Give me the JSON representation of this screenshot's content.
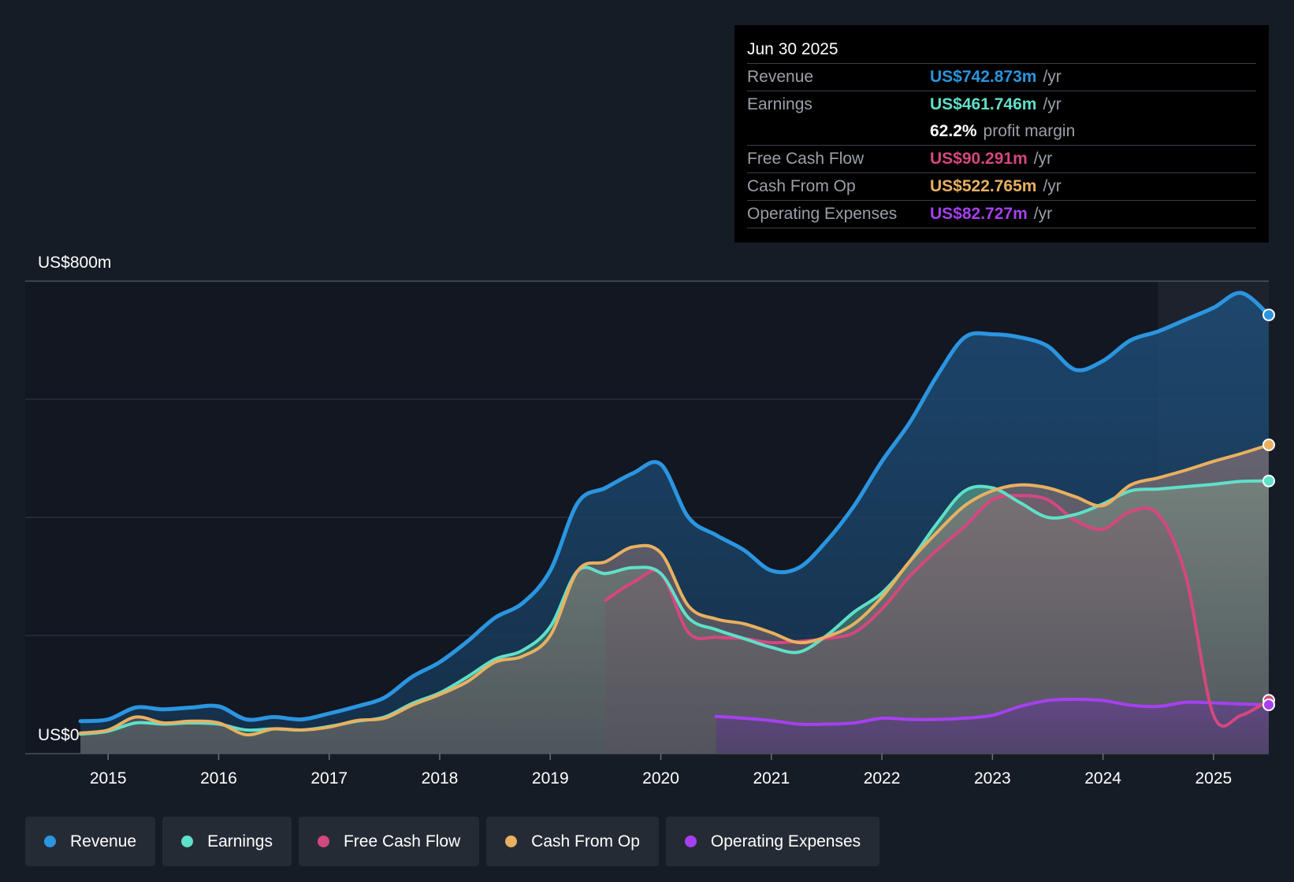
{
  "tooltip": {
    "date": "Jun 30 2025",
    "unit": "/yr",
    "revenue": {
      "label": "Revenue",
      "value": "US$742.873m"
    },
    "earnings": {
      "label": "Earnings",
      "value": "US$461.746m"
    },
    "margin": {
      "value": "62.2%",
      "label": "profit margin"
    },
    "fcf": {
      "label": "Free Cash Flow",
      "value": "US$90.291m"
    },
    "cfo": {
      "label": "Cash From Op",
      "value": "US$522.765m"
    },
    "opex": {
      "label": "Operating Expenses",
      "value": "US$82.727m"
    }
  },
  "legend": {
    "revenue": "Revenue",
    "earnings": "Earnings",
    "fcf": "Free Cash Flow",
    "cfo": "Cash From Op",
    "opex": "Operating Expenses"
  },
  "colors": {
    "revenue": "#2b95e0",
    "earnings": "#5fe0c8",
    "fcf": "#d5477f",
    "cfo": "#e9b060",
    "opex": "#a640f0"
  },
  "chart_data": {
    "type": "area",
    "ylabel_top": "US$800m",
    "ylabel_bottom": "US$0",
    "ylim": [
      0,
      800
    ],
    "xlim": [
      2014.25,
      2025.5
    ],
    "x_ticks": [
      "2015",
      "2016",
      "2017",
      "2018",
      "2019",
      "2020",
      "2021",
      "2022",
      "2023",
      "2024",
      "2025"
    ],
    "forecast_start": 2024.5,
    "series": [
      {
        "key": "revenue",
        "name": "Revenue",
        "x": [
          2014.75,
          2015.0,
          2015.25,
          2015.5,
          2015.75,
          2016.0,
          2016.25,
          2016.5,
          2016.75,
          2017.0,
          2017.25,
          2017.5,
          2017.75,
          2018.0,
          2018.25,
          2018.5,
          2018.75,
          2019.0,
          2019.25,
          2019.5,
          2019.75,
          2020.0,
          2020.25,
          2020.5,
          2020.75,
          2021.0,
          2021.25,
          2021.5,
          2021.75,
          2022.0,
          2022.25,
          2022.5,
          2022.75,
          2023.0,
          2023.25,
          2023.5,
          2023.75,
          2024.0,
          2024.25,
          2024.5,
          2024.75,
          2025.0,
          2025.25,
          2025.5
        ],
        "values": [
          55,
          58,
          78,
          75,
          78,
          80,
          58,
          62,
          58,
          68,
          80,
          95,
          130,
          155,
          190,
          230,
          255,
          310,
          425,
          450,
          475,
          490,
          400,
          370,
          345,
          310,
          315,
          360,
          420,
          495,
          560,
          640,
          705,
          710,
          705,
          690,
          650,
          665,
          700,
          715,
          735,
          755,
          780,
          742.9
        ]
      },
      {
        "key": "earnings",
        "name": "Earnings",
        "x": [
          2014.75,
          2015.0,
          2015.25,
          2015.5,
          2015.75,
          2016.0,
          2016.25,
          2016.5,
          2016.75,
          2017.0,
          2017.25,
          2017.5,
          2017.75,
          2018.0,
          2018.25,
          2018.5,
          2018.75,
          2019.0,
          2019.25,
          2019.5,
          2019.75,
          2020.0,
          2020.25,
          2020.5,
          2020.75,
          2021.0,
          2021.25,
          2021.5,
          2021.75,
          2022.0,
          2022.25,
          2022.5,
          2022.75,
          2023.0,
          2023.25,
          2023.5,
          2023.75,
          2024.0,
          2024.25,
          2024.5,
          2024.75,
          2025.0,
          2025.25,
          2025.5
        ],
        "values": [
          33,
          38,
          52,
          50,
          52,
          50,
          40,
          42,
          40,
          46,
          55,
          62,
          85,
          103,
          130,
          160,
          175,
          215,
          310,
          305,
          315,
          305,
          230,
          210,
          195,
          180,
          172,
          200,
          240,
          272,
          325,
          390,
          445,
          450,
          425,
          400,
          405,
          423,
          445,
          448,
          452,
          456,
          461,
          461.7
        ]
      },
      {
        "key": "cfo",
        "name": "Cash From Op",
        "x": [
          2014.75,
          2015.0,
          2015.25,
          2015.5,
          2015.75,
          2016.0,
          2016.25,
          2016.5,
          2016.75,
          2017.0,
          2017.25,
          2017.5,
          2017.75,
          2018.0,
          2018.25,
          2018.5,
          2018.75,
          2019.0,
          2019.25,
          2019.5,
          2019.75,
          2020.0,
          2020.25,
          2020.5,
          2020.75,
          2021.0,
          2021.25,
          2021.5,
          2021.75,
          2022.0,
          2022.25,
          2022.5,
          2022.75,
          2023.0,
          2023.25,
          2023.5,
          2023.75,
          2024.0,
          2024.25,
          2024.5,
          2024.75,
          2025.0,
          2025.25,
          2025.5
        ],
        "values": [
          35,
          40,
          62,
          52,
          55,
          52,
          32,
          42,
          40,
          45,
          56,
          60,
          82,
          100,
          122,
          155,
          165,
          200,
          310,
          325,
          350,
          340,
          250,
          228,
          220,
          205,
          188,
          198,
          220,
          265,
          325,
          375,
          420,
          445,
          455,
          450,
          435,
          420,
          455,
          467,
          480,
          495,
          508,
          522.8
        ]
      },
      {
        "key": "fcf",
        "name": "Free Cash Flow",
        "x": [
          2019.5,
          2019.75,
          2020.0,
          2020.25,
          2020.5,
          2020.75,
          2021.0,
          2021.25,
          2021.5,
          2021.75,
          2022.0,
          2022.25,
          2022.5,
          2022.75,
          2023.0,
          2023.25,
          2023.5,
          2023.75,
          2024.0,
          2024.25,
          2024.5,
          2024.75,
          2025.0,
          2025.25,
          2025.5
        ],
        "values": [
          260,
          290,
          305,
          205,
          197,
          195,
          188,
          190,
          195,
          205,
          245,
          300,
          345,
          385,
          430,
          437,
          430,
          395,
          380,
          410,
          405,
          300,
          65,
          65,
          90.3
        ]
      },
      {
        "key": "opex",
        "name": "Operating Expenses",
        "x": [
          2020.5,
          2020.75,
          2021.0,
          2021.25,
          2021.5,
          2021.75,
          2022.0,
          2022.25,
          2022.5,
          2022.75,
          2023.0,
          2023.25,
          2023.5,
          2023.75,
          2024.0,
          2024.25,
          2024.5,
          2024.75,
          2025.0,
          2025.25,
          2025.5
        ],
        "values": [
          63,
          60,
          56,
          50,
          50,
          52,
          60,
          58,
          58,
          60,
          65,
          80,
          90,
          92,
          90,
          82,
          80,
          87,
          86,
          84,
          82.7
        ]
      }
    ]
  }
}
